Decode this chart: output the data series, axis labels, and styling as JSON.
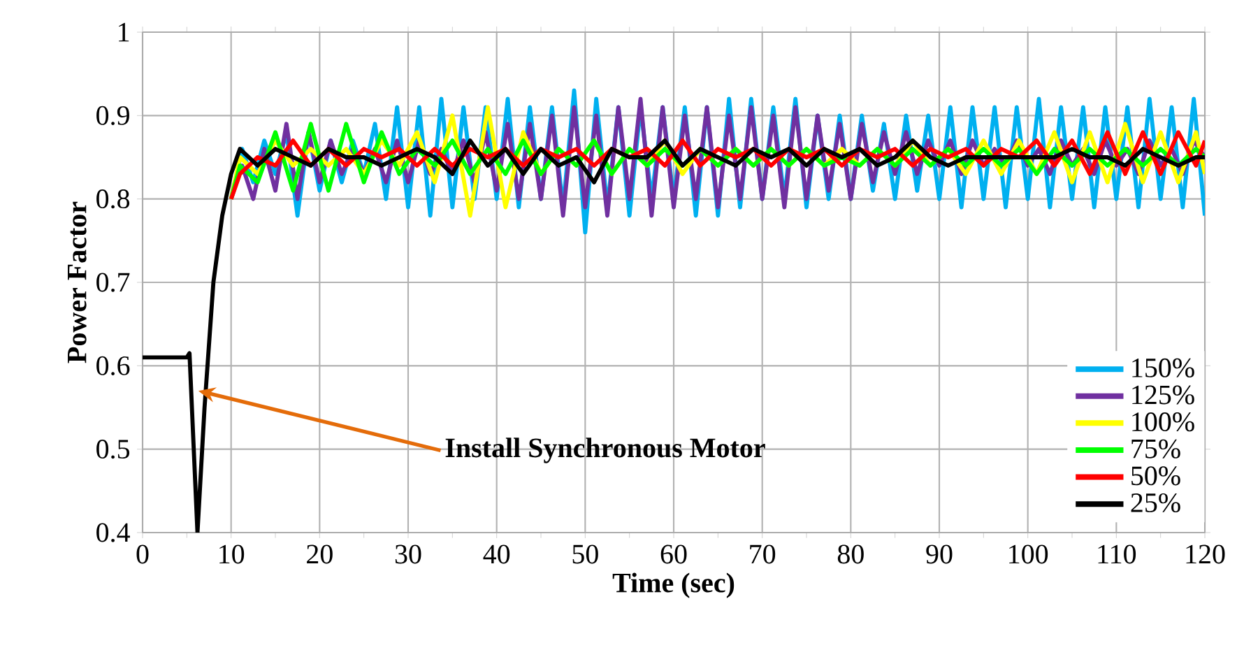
{
  "chart_data": {
    "type": "line",
    "xlabel": "Time (sec)",
    "ylabel": "Power Factor",
    "xlim": [
      0,
      120
    ],
    "ylim": [
      0.4,
      1
    ],
    "xticks": [
      0,
      10,
      20,
      30,
      40,
      50,
      60,
      70,
      80,
      90,
      100,
      110,
      120
    ],
    "yticks": [
      0.4,
      0.5,
      0.6,
      0.7,
      0.8,
      0.9,
      1
    ],
    "grid": true,
    "legend": "bottom right",
    "marker": "none",
    "line_style": "solid",
    "annotations": [
      {
        "text": "Install Synchronous Motor",
        "x": 6.3,
        "y": 0.57
      }
    ],
    "series": [
      {
        "name": "150%",
        "color": "#00b0f0",
        "x": [
          10,
          11.25,
          12.5,
          13.75,
          15,
          16.25,
          17.5,
          18.75,
          20,
          21.25,
          22.5,
          23.75,
          25,
          26.25,
          27.5,
          28.75,
          30,
          31.25,
          32.5,
          33.75,
          35,
          36.25,
          37.5,
          38.75,
          40,
          41.25,
          42.5,
          43.75,
          45,
          46.25,
          47.5,
          48.75,
          50,
          51.25,
          52.5,
          53.75,
          55,
          56.25,
          57.5,
          58.75,
          60,
          61.25,
          62.5,
          63.75,
          65,
          66.25,
          67.5,
          68.75,
          70,
          71.25,
          72.5,
          73.75,
          75,
          76.25,
          77.5,
          78.75,
          80,
          81.25,
          82.5,
          83.75,
          85,
          86.25,
          87.5,
          88.75,
          90,
          91.25,
          92.5,
          93.75,
          95,
          96.25,
          97.5,
          98.75,
          100,
          101.25,
          102.5,
          103.75,
          105,
          106.25,
          107.5,
          108.75,
          110,
          111.25,
          112.5,
          113.75,
          115,
          116.25,
          117.5,
          118.75,
          120
        ],
        "values": [
          0.8,
          0.86,
          0.82,
          0.87,
          0.83,
          0.88,
          0.78,
          0.88,
          0.81,
          0.87,
          0.82,
          0.87,
          0.83,
          0.89,
          0.8,
          0.91,
          0.79,
          0.91,
          0.78,
          0.92,
          0.79,
          0.91,
          0.8,
          0.91,
          0.8,
          0.92,
          0.79,
          0.91,
          0.8,
          0.91,
          0.79,
          0.93,
          0.76,
          0.92,
          0.79,
          0.91,
          0.78,
          0.91,
          0.8,
          0.91,
          0.8,
          0.91,
          0.78,
          0.91,
          0.78,
          0.92,
          0.79,
          0.92,
          0.8,
          0.91,
          0.8,
          0.92,
          0.79,
          0.9,
          0.8,
          0.9,
          0.8,
          0.9,
          0.81,
          0.89,
          0.8,
          0.9,
          0.81,
          0.9,
          0.8,
          0.91,
          0.79,
          0.91,
          0.8,
          0.91,
          0.79,
          0.91,
          0.8,
          0.92,
          0.79,
          0.91,
          0.8,
          0.91,
          0.79,
          0.91,
          0.8,
          0.91,
          0.79,
          0.92,
          0.8,
          0.91,
          0.79,
          0.92,
          0.78
        ]
      },
      {
        "name": "125%",
        "color": "#7030a0",
        "x": [
          10,
          11.25,
          12.5,
          13.75,
          15,
          16.25,
          17.5,
          18.75,
          20,
          21.25,
          22.5,
          23.75,
          25,
          26.25,
          27.5,
          28.75,
          30,
          31.25,
          32.5,
          33.75,
          35,
          36.25,
          37.5,
          38.75,
          40,
          41.25,
          42.5,
          43.75,
          45,
          46.25,
          47.5,
          48.75,
          50,
          51.25,
          52.5,
          53.75,
          55,
          56.25,
          57.5,
          58.75,
          60,
          61.25,
          62.5,
          63.75,
          65,
          66.25,
          67.5,
          68.75,
          70,
          71.25,
          72.5,
          73.75,
          75,
          76.25,
          77.5,
          78.75,
          80,
          81.25,
          82.5,
          83.75,
          85,
          86.25,
          87.5,
          88.75,
          90,
          91.25,
          92.5,
          93.75,
          95,
          96.25,
          97.5,
          98.75,
          100,
          101.25,
          102.5,
          103.75,
          105,
          106.25,
          107.5,
          108.75,
          110,
          111.25,
          112.5,
          113.75,
          115,
          116.25,
          117.5,
          118.75,
          120
        ],
        "values": [
          0.8,
          0.84,
          0.8,
          0.86,
          0.81,
          0.89,
          0.8,
          0.88,
          0.82,
          0.87,
          0.83,
          0.86,
          0.83,
          0.86,
          0.82,
          0.87,
          0.82,
          0.87,
          0.83,
          0.86,
          0.83,
          0.87,
          0.82,
          0.88,
          0.81,
          0.89,
          0.8,
          0.89,
          0.8,
          0.9,
          0.78,
          0.91,
          0.79,
          0.9,
          0.78,
          0.91,
          0.8,
          0.92,
          0.78,
          0.91,
          0.79,
          0.9,
          0.8,
          0.91,
          0.79,
          0.9,
          0.8,
          0.91,
          0.8,
          0.9,
          0.79,
          0.91,
          0.8,
          0.9,
          0.81,
          0.89,
          0.8,
          0.89,
          0.82,
          0.88,
          0.83,
          0.88,
          0.83,
          0.87,
          0.84,
          0.87,
          0.83,
          0.87,
          0.84,
          0.86,
          0.84,
          0.87,
          0.84,
          0.86,
          0.83,
          0.87,
          0.84,
          0.86,
          0.83,
          0.87,
          0.84,
          0.86,
          0.83,
          0.87,
          0.84,
          0.86,
          0.83,
          0.87,
          0.85
        ]
      },
      {
        "name": "100%",
        "color": "#ffff00",
        "x": [
          10,
          11,
          13,
          15,
          17,
          19,
          21,
          23,
          25,
          27,
          29,
          31,
          33,
          35,
          37,
          39,
          41,
          43,
          45,
          47,
          49,
          51,
          53,
          55,
          57,
          59,
          61,
          63,
          65,
          67,
          69,
          71,
          73,
          75,
          77,
          79,
          81,
          83,
          85,
          87,
          89,
          91,
          93,
          95,
          97,
          99,
          101,
          103,
          105,
          107,
          109,
          111,
          113,
          115,
          117,
          119,
          120
        ],
        "values": [
          0.8,
          0.85,
          0.83,
          0.87,
          0.84,
          0.86,
          0.84,
          0.86,
          0.83,
          0.87,
          0.84,
          0.88,
          0.82,
          0.9,
          0.78,
          0.91,
          0.79,
          0.88,
          0.83,
          0.86,
          0.84,
          0.87,
          0.83,
          0.86,
          0.84,
          0.87,
          0.83,
          0.86,
          0.84,
          0.86,
          0.84,
          0.86,
          0.84,
          0.86,
          0.84,
          0.86,
          0.84,
          0.86,
          0.84,
          0.87,
          0.84,
          0.86,
          0.83,
          0.87,
          0.83,
          0.87,
          0.83,
          0.88,
          0.82,
          0.88,
          0.82,
          0.89,
          0.82,
          0.88,
          0.82,
          0.88,
          0.83
        ]
      },
      {
        "name": "75%",
        "color": "#00ff00",
        "x": [
          10,
          11,
          13,
          15,
          17,
          19,
          21,
          23,
          25,
          27,
          29,
          31,
          33,
          35,
          37,
          39,
          41,
          43,
          45,
          47,
          49,
          51,
          53,
          55,
          57,
          59,
          61,
          63,
          65,
          67,
          69,
          71,
          73,
          75,
          77,
          79,
          81,
          83,
          85,
          87,
          89,
          91,
          93,
          95,
          97,
          99,
          101,
          103,
          105,
          107,
          109,
          111,
          113,
          115,
          117,
          119,
          120
        ],
        "values": [
          0.8,
          0.84,
          0.82,
          0.88,
          0.81,
          0.89,
          0.81,
          0.89,
          0.82,
          0.88,
          0.83,
          0.86,
          0.84,
          0.87,
          0.83,
          0.86,
          0.83,
          0.87,
          0.83,
          0.86,
          0.84,
          0.87,
          0.83,
          0.86,
          0.84,
          0.86,
          0.84,
          0.86,
          0.84,
          0.86,
          0.84,
          0.86,
          0.84,
          0.86,
          0.84,
          0.85,
          0.84,
          0.86,
          0.84,
          0.86,
          0.84,
          0.86,
          0.84,
          0.86,
          0.84,
          0.86,
          0.83,
          0.86,
          0.84,
          0.86,
          0.84,
          0.86,
          0.84,
          0.86,
          0.84,
          0.86,
          0.85
        ]
      },
      {
        "name": "50%",
        "color": "#ff0000",
        "x": [
          10,
          11,
          13,
          15,
          17,
          19,
          21,
          23,
          25,
          27,
          29,
          31,
          33,
          35,
          37,
          39,
          41,
          43,
          45,
          47,
          49,
          51,
          53,
          55,
          57,
          59,
          61,
          63,
          65,
          67,
          69,
          71,
          73,
          75,
          77,
          79,
          81,
          83,
          85,
          87,
          89,
          91,
          93,
          95,
          97,
          99,
          101,
          103,
          105,
          107,
          109,
          111,
          113,
          115,
          117,
          119,
          120
        ],
        "values": [
          0.8,
          0.83,
          0.85,
          0.84,
          0.87,
          0.84,
          0.86,
          0.84,
          0.86,
          0.85,
          0.86,
          0.84,
          0.86,
          0.84,
          0.86,
          0.85,
          0.86,
          0.84,
          0.86,
          0.85,
          0.86,
          0.84,
          0.86,
          0.85,
          0.86,
          0.84,
          0.87,
          0.84,
          0.86,
          0.85,
          0.86,
          0.84,
          0.86,
          0.85,
          0.86,
          0.84,
          0.86,
          0.85,
          0.86,
          0.84,
          0.86,
          0.85,
          0.86,
          0.84,
          0.86,
          0.85,
          0.87,
          0.84,
          0.87,
          0.83,
          0.88,
          0.83,
          0.88,
          0.83,
          0.88,
          0.84,
          0.87
        ]
      },
      {
        "name": "25%",
        "color": "#000000",
        "x": [
          0,
          5,
          5.3,
          6.2,
          7,
          8,
          9,
          10,
          11,
          13,
          15,
          17,
          19,
          21,
          23,
          25,
          27,
          29,
          31,
          33,
          35,
          37,
          39,
          41,
          43,
          45,
          47,
          49,
          51,
          53,
          55,
          57,
          59,
          61,
          63,
          65,
          67,
          69,
          71,
          73,
          75,
          77,
          79,
          81,
          83,
          85,
          87,
          89,
          91,
          93,
          95,
          97,
          99,
          101,
          103,
          105,
          107,
          109,
          111,
          113,
          115,
          117,
          119,
          120
        ],
        "values": [
          0.61,
          0.61,
          0.615,
          0.4,
          0.55,
          0.7,
          0.78,
          0.83,
          0.86,
          0.84,
          0.86,
          0.85,
          0.84,
          0.86,
          0.85,
          0.85,
          0.84,
          0.85,
          0.86,
          0.85,
          0.83,
          0.87,
          0.84,
          0.86,
          0.83,
          0.86,
          0.84,
          0.85,
          0.82,
          0.86,
          0.85,
          0.85,
          0.87,
          0.84,
          0.86,
          0.85,
          0.84,
          0.86,
          0.85,
          0.86,
          0.84,
          0.86,
          0.85,
          0.86,
          0.84,
          0.85,
          0.87,
          0.85,
          0.84,
          0.85,
          0.85,
          0.85,
          0.85,
          0.85,
          0.85,
          0.86,
          0.85,
          0.85,
          0.84,
          0.86,
          0.85,
          0.84,
          0.85,
          0.85
        ]
      }
    ]
  }
}
